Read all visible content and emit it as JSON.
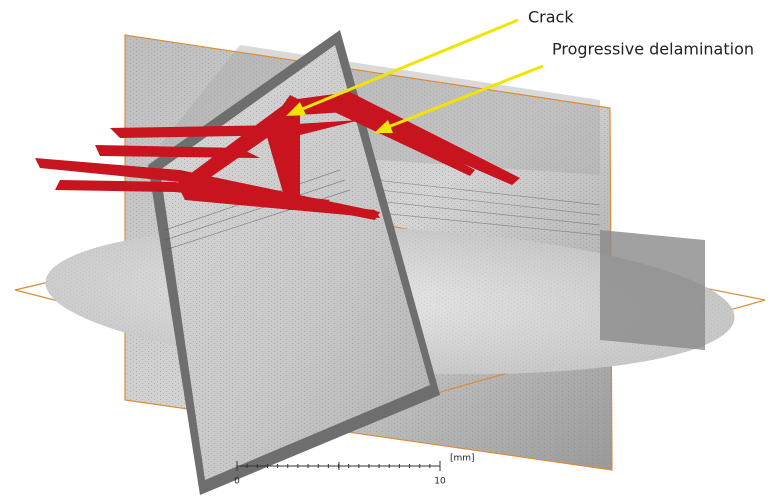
{
  "annotations": [
    {
      "label": "Crack"
    },
    {
      "label": "Progressive delamination"
    }
  ],
  "scale_bar": {
    "unit": "[mm]",
    "start": 0,
    "end": 10
  }
}
